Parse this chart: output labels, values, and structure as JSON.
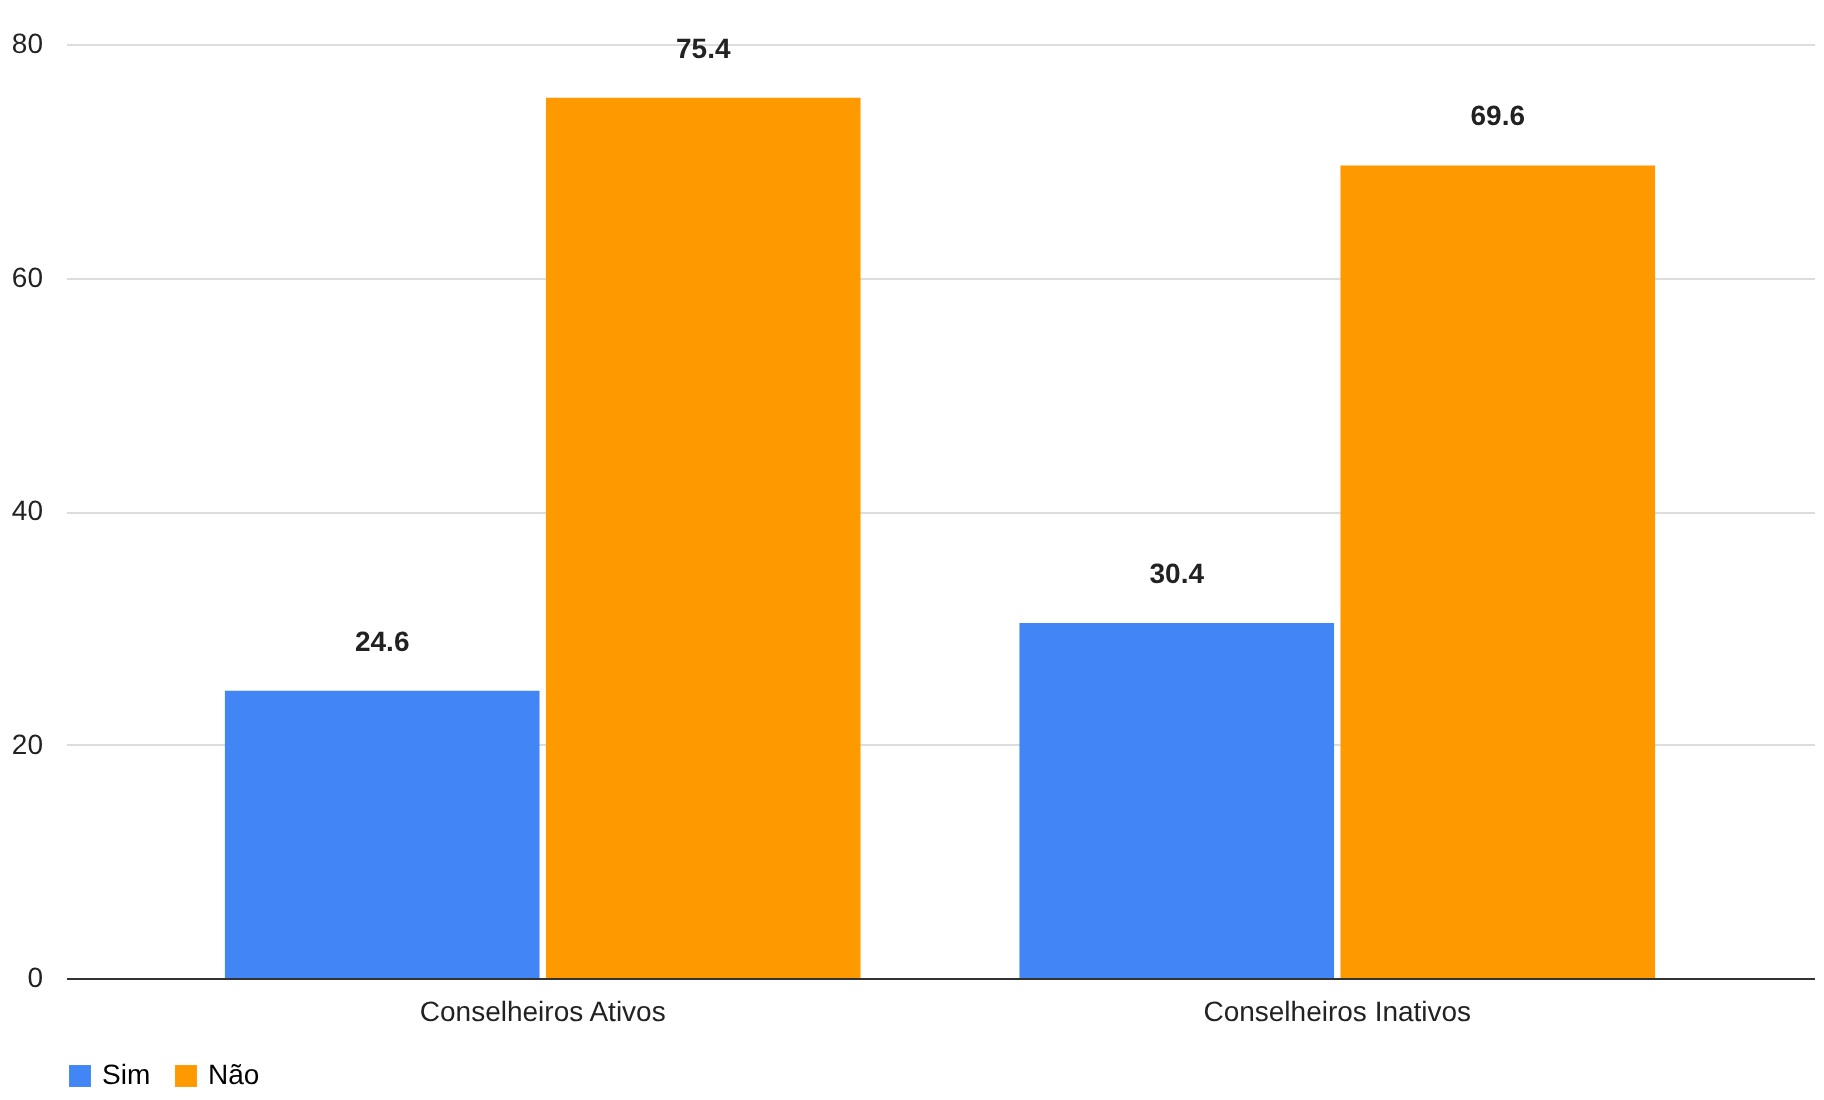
{
  "chart_data": {
    "type": "bar",
    "categories": [
      "Conselheiros Ativos",
      "Conselheiros Inativos"
    ],
    "series": [
      {
        "name": "Sim",
        "color": "#4285f4",
        "values": [
          24.6,
          30.4
        ]
      },
      {
        "name": "Não",
        "color": "#ff9900",
        "values": [
          75.4,
          69.6
        ]
      }
    ],
    "ylim": [
      0,
      80
    ],
    "yticks": [
      0,
      20,
      40,
      60,
      80
    ],
    "grid": "y",
    "legend": "bottom",
    "data_labels": true
  }
}
